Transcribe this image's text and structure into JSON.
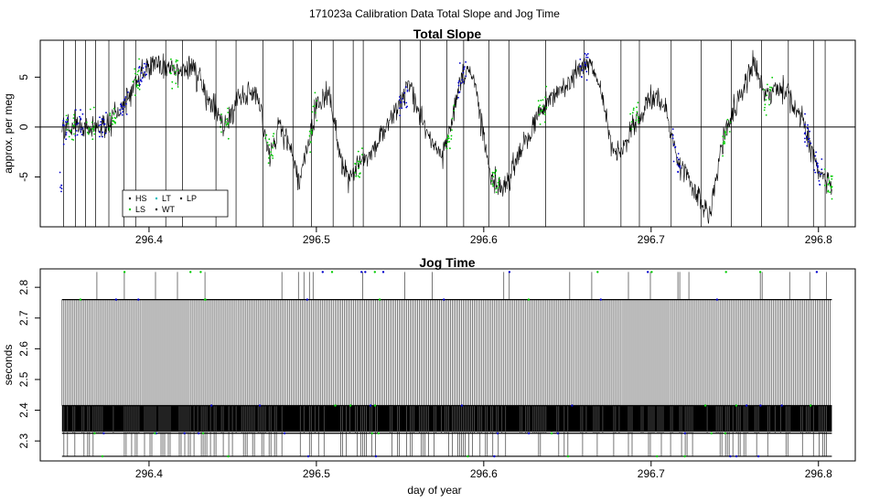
{
  "figure": {
    "title": "171023a   Calibration Data Total Slope and Jog Time",
    "xlabel": "day of year"
  },
  "chart_data": [
    {
      "type": "line",
      "title": "Total Slope",
      "ylabel": "approx. per meg",
      "xlim": [
        296.335,
        296.822
      ],
      "ylim": [
        -10,
        8.7
      ],
      "x_ticks": [
        296.4,
        296.5,
        296.6,
        296.7,
        296.8
      ],
      "x_tick_labels": [
        "296.4",
        "296.5",
        "296.6",
        "296.7",
        "296.8"
      ],
      "y_ticks": [
        -5,
        0,
        5
      ],
      "y_tick_labels": [
        "-5",
        "0",
        "5"
      ],
      "reference_line_y": 0,
      "x_range": [
        296.348,
        296.808
      ],
      "series": [
        {
          "name": "HS",
          "color": "#000000",
          "style": "line"
        },
        {
          "name": "LS",
          "color": "#00cc00",
          "style": "points"
        },
        {
          "name": "LT",
          "color": "#00bbbb",
          "style": "points"
        },
        {
          "name": "WT",
          "color": "#0000cc",
          "style": "points"
        },
        {
          "name": "LP",
          "color": "#000000",
          "style": "points"
        }
      ],
      "trend_points": [
        [
          296.348,
          0.0
        ],
        [
          296.36,
          0.3
        ],
        [
          296.37,
          -0.2
        ],
        [
          296.38,
          0.8
        ],
        [
          296.388,
          3.0
        ],
        [
          296.395,
          5.5
        ],
        [
          296.405,
          6.5
        ],
        [
          296.415,
          5.2
        ],
        [
          296.425,
          6.2
        ],
        [
          296.435,
          3.0
        ],
        [
          296.445,
          0.0
        ],
        [
          296.455,
          3.5
        ],
        [
          296.465,
          3.0
        ],
        [
          296.472,
          -3.0
        ],
        [
          296.478,
          0.0
        ],
        [
          296.485,
          -2.5
        ],
        [
          296.49,
          -5.5
        ],
        [
          296.5,
          2.0
        ],
        [
          296.508,
          3.2
        ],
        [
          296.515,
          -4.0
        ],
        [
          296.52,
          -5.0
        ],
        [
          296.53,
          -3.0
        ],
        [
          296.545,
          1.0
        ],
        [
          296.555,
          4.0
        ],
        [
          296.565,
          0.0
        ],
        [
          296.575,
          -3.0
        ],
        [
          296.58,
          -0.5
        ],
        [
          296.585,
          4.0
        ],
        [
          296.59,
          6.0
        ],
        [
          296.595,
          4.0
        ],
        [
          296.6,
          -1.0
        ],
        [
          296.605,
          -5.0
        ],
        [
          296.612,
          -6.5
        ],
        [
          296.62,
          -3.0
        ],
        [
          296.627,
          -1.0
        ],
        [
          296.632,
          1.0
        ],
        [
          296.64,
          3.0
        ],
        [
          296.648,
          4.0
        ],
        [
          296.655,
          5.5
        ],
        [
          296.662,
          6.5
        ],
        [
          296.67,
          4.0
        ],
        [
          296.675,
          -1.0
        ],
        [
          296.68,
          -3.0
        ],
        [
          296.69,
          0.5
        ],
        [
          296.7,
          3.0
        ],
        [
          296.708,
          2.0
        ],
        [
          296.715,
          -3.0
        ],
        [
          296.725,
          -6.0
        ],
        [
          296.735,
          -9.0
        ],
        [
          296.742,
          -2.0
        ],
        [
          296.748,
          1.0
        ],
        [
          296.755,
          4.0
        ],
        [
          296.762,
          6.5
        ],
        [
          296.768,
          3.0
        ],
        [
          296.775,
          4.0
        ],
        [
          296.782,
          3.0
        ],
        [
          296.79,
          1.0
        ],
        [
          296.795,
          -2.0
        ],
        [
          296.8,
          -4.5
        ],
        [
          296.808,
          -6.0
        ]
      ],
      "legend": {
        "placement": "bottom-left",
        "entries": [
          "HS",
          "LT",
          "LP",
          "LS",
          "WT"
        ]
      }
    },
    {
      "type": "line",
      "title": "Jog Time",
      "ylabel": "seconds",
      "xlim": [
        296.335,
        296.822
      ],
      "ylim": [
        2.235,
        2.86
      ],
      "x_ticks": [
        296.4,
        296.5,
        296.6,
        296.7,
        296.8
      ],
      "x_tick_labels": [
        "296.4",
        "296.5",
        "296.6",
        "296.7",
        "296.8"
      ],
      "y_ticks": [
        2.3,
        2.4,
        2.5,
        2.6,
        2.7,
        2.8
      ],
      "y_tick_labels": [
        "2.3",
        "2.4",
        "2.5",
        "2.6",
        "2.7",
        "2.8"
      ],
      "x_range": [
        296.348,
        296.808
      ],
      "levels": [
        2.25,
        2.325,
        2.415,
        2.76,
        2.85
      ],
      "dense_band": [
        2.33,
        2.415
      ]
    }
  ],
  "colors": {
    "hs_line": "#000000",
    "ls_points": "#00cc00",
    "wt_points": "#0000cc",
    "lt_points": "#00bbbb",
    "jog_lines": "#555555"
  }
}
